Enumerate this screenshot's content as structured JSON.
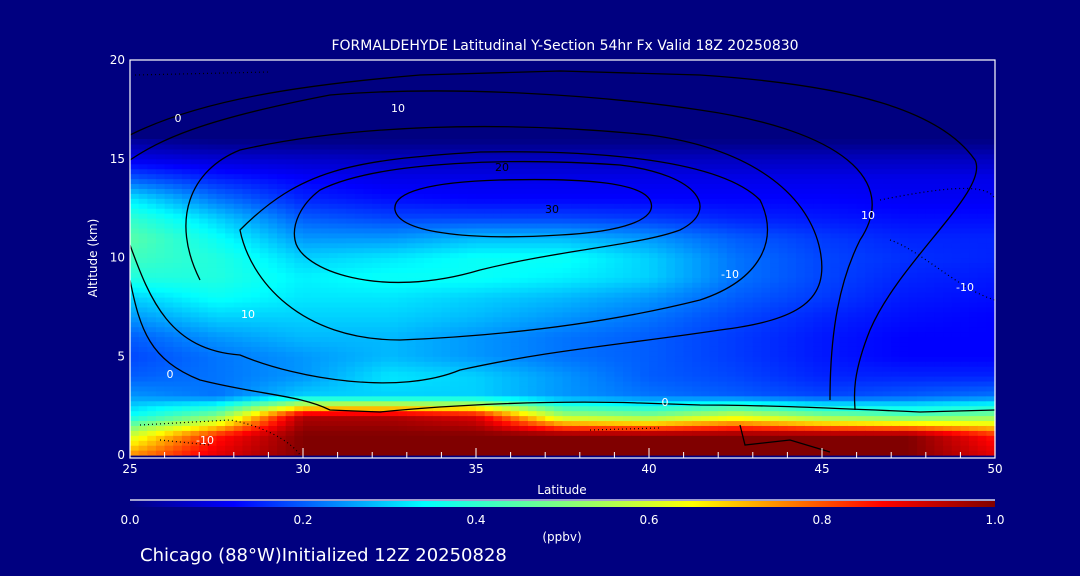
{
  "chart_data": {
    "type": "heatmap",
    "title": "FORMALDEHYDE Latitudinal Y-Section 54hr  Fx Valid 18Z 20250830",
    "xlabel": "Latitude",
    "ylabel": "Altitude (km)",
    "xlim": [
      25,
      50
    ],
    "ylim": [
      0,
      20
    ],
    "x_ticks": [
      "25",
      "30",
      "35",
      "40",
      "45",
      "50"
    ],
    "y_ticks": [
      "0",
      "5",
      "10",
      "15",
      "20"
    ],
    "grid_lat": [
      25,
      27.5,
      30,
      32.5,
      35,
      37.5,
      40,
      42.5,
      45,
      47.5,
      50
    ],
    "grid_alt": [
      0,
      1,
      2,
      3,
      4,
      5,
      6,
      7,
      8,
      9,
      10,
      11,
      12,
      13,
      14,
      15,
      16
    ],
    "values": [
      [
        0.75,
        0.9,
        1,
        1,
        1,
        1,
        1,
        1,
        1,
        1,
        0.9
      ],
      [
        0.6,
        0.85,
        1,
        1,
        1,
        1,
        1,
        1,
        1,
        1,
        0.85
      ],
      [
        0.35,
        0.5,
        0.95,
        0.95,
        0.9,
        0.55,
        0.5,
        0.6,
        0.5,
        0.45,
        0.5
      ],
      [
        0.25,
        0.22,
        0.3,
        0.3,
        0.3,
        0.25,
        0.22,
        0.2,
        0.18,
        0.2,
        0.22
      ],
      [
        0.2,
        0.22,
        0.25,
        0.32,
        0.3,
        0.25,
        0.2,
        0.18,
        0.15,
        0.15,
        0.15
      ],
      [
        0.18,
        0.22,
        0.25,
        0.28,
        0.25,
        0.22,
        0.2,
        0.17,
        0.14,
        0.12,
        0.12
      ],
      [
        0.2,
        0.25,
        0.28,
        0.28,
        0.25,
        0.22,
        0.2,
        0.17,
        0.14,
        0.12,
        0.12
      ],
      [
        0.25,
        0.3,
        0.3,
        0.3,
        0.28,
        0.25,
        0.22,
        0.18,
        0.15,
        0.13,
        0.12
      ],
      [
        0.3,
        0.35,
        0.32,
        0.32,
        0.3,
        0.28,
        0.25,
        0.2,
        0.17,
        0.14,
        0.13
      ],
      [
        0.38,
        0.38,
        0.33,
        0.35,
        0.35,
        0.33,
        0.3,
        0.22,
        0.18,
        0.15,
        0.14
      ],
      [
        0.42,
        0.38,
        0.3,
        0.32,
        0.35,
        0.35,
        0.3,
        0.22,
        0.18,
        0.16,
        0.15
      ],
      [
        0.45,
        0.35,
        0.25,
        0.25,
        0.28,
        0.28,
        0.25,
        0.2,
        0.17,
        0.15,
        0.15
      ],
      [
        0.4,
        0.3,
        0.2,
        0.18,
        0.18,
        0.18,
        0.17,
        0.15,
        0.14,
        0.13,
        0.13
      ],
      [
        0.32,
        0.22,
        0.15,
        0.13,
        0.12,
        0.12,
        0.12,
        0.12,
        0.12,
        0.11,
        0.11
      ],
      [
        0.2,
        0.15,
        0.12,
        0.1,
        0.1,
        0.1,
        0.1,
        0.1,
        0.1,
        0.1,
        0.1
      ],
      [
        0.1,
        0.08,
        0.07,
        0.06,
        0.06,
        0.06,
        0.06,
        0.06,
        0.06,
        0.06,
        0.06
      ],
      [
        0.02,
        0,
        0,
        0,
        0,
        0,
        0,
        0,
        0,
        0,
        0
      ]
    ],
    "contour_labels": [
      "0",
      "10",
      "20",
      "30",
      "10",
      "0",
      "-10",
      "0",
      "-10",
      "-10",
      "10"
    ],
    "colorbar": {
      "label": "(ppbv)",
      "ticks": [
        "0.0",
        "0.2",
        "0.4",
        "0.6",
        "0.8",
        "1.0"
      ],
      "range": [
        0,
        1
      ]
    }
  },
  "footer": "Chicago (88°W)Initialized 12Z 20250828",
  "colors": {
    "background": "#000080",
    "axis": "#ffffff",
    "contour": "#000000"
  }
}
